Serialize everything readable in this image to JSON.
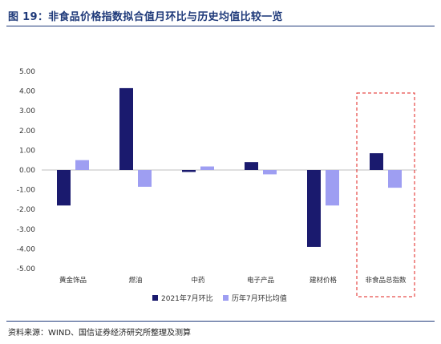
{
  "header": {
    "title": "图 19：非食品价格指数拟合值月环比与历史均值比较一览"
  },
  "footer": {
    "source": "资料来源：WIND、国信证券经济研究所整理及测算"
  },
  "colors": {
    "series1": "#1a1a6e",
    "series2": "#9e9ef2",
    "highlight_border": "#e0201c",
    "title": "#1f3a7a"
  },
  "chart_data": {
    "type": "bar",
    "title": "",
    "xlabel": "",
    "ylabel": "",
    "ylim": [
      -5,
      5
    ],
    "yticks": [
      "5.00",
      "4.00",
      "3.00",
      "2.00",
      "1.00",
      "0.00",
      "-1.00",
      "-2.00",
      "-3.00",
      "-4.00",
      "-5.00"
    ],
    "ytick_values": [
      5,
      4,
      3,
      2,
      1,
      0,
      -1,
      -2,
      -3,
      -4,
      -5
    ],
    "categories": [
      "黄金饰品",
      "燃油",
      "中药",
      "电子产品",
      "建材价格",
      "非食品总指数"
    ],
    "series": [
      {
        "name": "2021年7月环比",
        "values": [
          -1.8,
          4.15,
          -0.1,
          0.4,
          -3.9,
          0.85
        ]
      },
      {
        "name": "历年7月环比均值",
        "values": [
          0.5,
          -0.85,
          0.18,
          -0.22,
          -1.8,
          -0.9
        ]
      }
    ],
    "grid": false,
    "legend_position": "bottom",
    "highlight_category": "非食品总指数"
  }
}
